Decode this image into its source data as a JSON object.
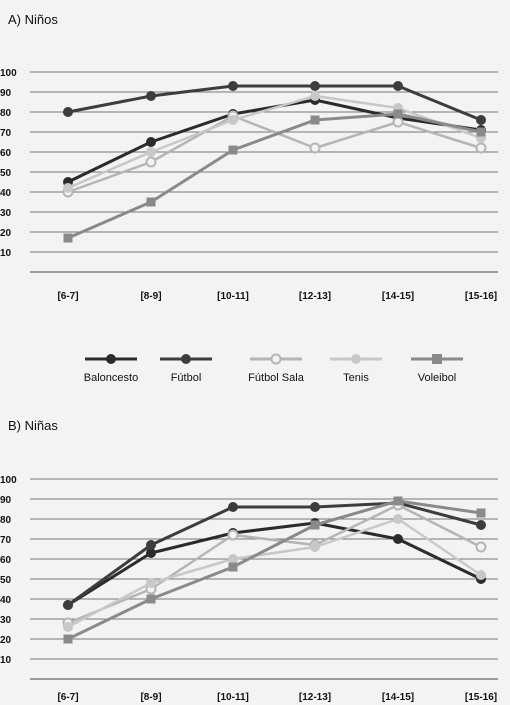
{
  "chart_data": [
    {
      "type": "line",
      "title": "A) Niños",
      "categories": [
        "[6-7]",
        "[8-9]",
        "[10-11]",
        "[12-13]",
        "[14-15]",
        "[15-16]"
      ],
      "ylim": [
        0,
        100
      ],
      "yticks": [
        10,
        20,
        30,
        40,
        50,
        60,
        70,
        80,
        90,
        100
      ],
      "grid": true,
      "series": [
        {
          "name": "Baloncesto",
          "values": [
            45,
            65,
            79,
            86,
            77,
            71
          ],
          "color": "#2b2b2b",
          "marker": "circle"
        },
        {
          "name": "Fútbol",
          "values": [
            80,
            88,
            93,
            93,
            93,
            76
          ],
          "color": "#3d3d3d",
          "marker": "circle"
        },
        {
          "name": "Fútbol Sala",
          "values": [
            40,
            55,
            78,
            62,
            75,
            62
          ],
          "color": "#b5b5b5",
          "marker": "open-circle"
        },
        {
          "name": "Tenis",
          "values": [
            42,
            60,
            76,
            88,
            82,
            67
          ],
          "color": "#c8c8c8",
          "marker": "circle"
        },
        {
          "name": "Voleibol",
          "values": [
            17,
            35,
            61,
            76,
            79,
            70
          ],
          "color": "#8a8a8a",
          "marker": "square"
        }
      ]
    },
    {
      "type": "line",
      "title": "B) Niñas",
      "categories": [
        "[6-7]",
        "[8-9]",
        "[10-11]",
        "[12-13]",
        "[14-15]",
        "[15-16]"
      ],
      "ylim": [
        0,
        100
      ],
      "yticks": [
        10,
        20,
        30,
        40,
        50,
        60,
        70,
        80,
        90,
        100
      ],
      "grid": true,
      "series": [
        {
          "name": "Baloncesto",
          "values": [
            37,
            63,
            73,
            78,
            70,
            50
          ],
          "color": "#2b2b2b",
          "marker": "circle"
        },
        {
          "name": "Fútbol",
          "values": [
            37,
            67,
            86,
            86,
            88,
            77
          ],
          "color": "#3d3d3d",
          "marker": "circle"
        },
        {
          "name": "Fútbol Sala",
          "values": [
            28,
            45,
            72,
            67,
            87,
            66
          ],
          "color": "#b5b5b5",
          "marker": "open-circle"
        },
        {
          "name": "Tenis",
          "values": [
            26,
            48,
            60,
            66,
            80,
            52
          ],
          "color": "#c8c8c8",
          "marker": "circle"
        },
        {
          "name": "Voleibol",
          "values": [
            20,
            40,
            56,
            77,
            89,
            83
          ],
          "color": "#8a8a8a",
          "marker": "square"
        }
      ]
    }
  ],
  "legend": {
    "placement": "between-panels",
    "items": [
      "Baloncesto",
      "Fútbol",
      "Fútbol Sala",
      "Tenis",
      "Voleibol"
    ]
  }
}
